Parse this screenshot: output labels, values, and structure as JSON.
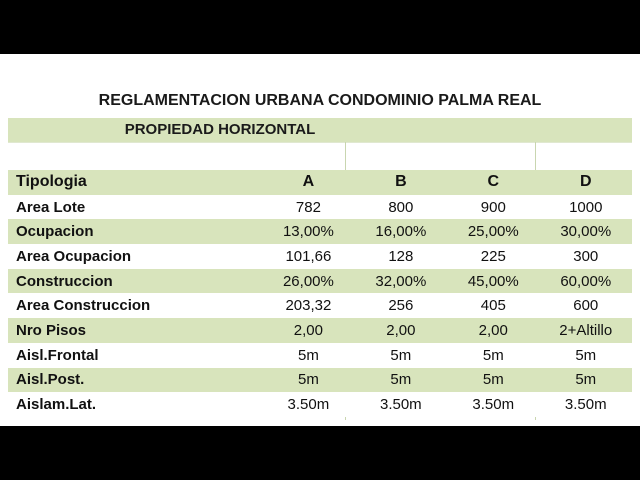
{
  "title": "REGLAMENTACION URBANA CONDOMINIO PALMA REAL",
  "subtitle": "PROPIEDAD HORIZONTAL",
  "header": {
    "label": "Tipologia",
    "cols": [
      "A",
      "B",
      "C",
      "D"
    ]
  },
  "rows": [
    {
      "label": "Area Lote",
      "values": [
        "782",
        "800",
        "900",
        "1000"
      ]
    },
    {
      "label": "Ocupacion",
      "values": [
        "13,00%",
        "16,00%",
        "25,00%",
        "30,00%"
      ]
    },
    {
      "label": "Area  Ocupacion",
      "values": [
        "101,66",
        "128",
        "225",
        "300"
      ]
    },
    {
      "label": "Construccion",
      "values": [
        "26,00%",
        "32,00%",
        "45,00%",
        "60,00%"
      ]
    },
    {
      "label": "Area Construccion",
      "values": [
        "203,32",
        "256",
        "405",
        "600"
      ]
    },
    {
      "label": "Nro Pisos",
      "values": [
        "2,00",
        "2,00",
        "2,00",
        "2+Altillo"
      ]
    },
    {
      "label": "Aisl.Frontal",
      "values": [
        "5m",
        "5m",
        "5m",
        "5m"
      ]
    },
    {
      "label": "Aisl.Post.",
      "values": [
        "5m",
        "5m",
        "5m",
        "5m"
      ]
    },
    {
      "label": "Aislam.Lat.",
      "values": [
        "3.50m",
        "3.50m",
        "3.50m",
        "3.50m"
      ]
    }
  ]
}
